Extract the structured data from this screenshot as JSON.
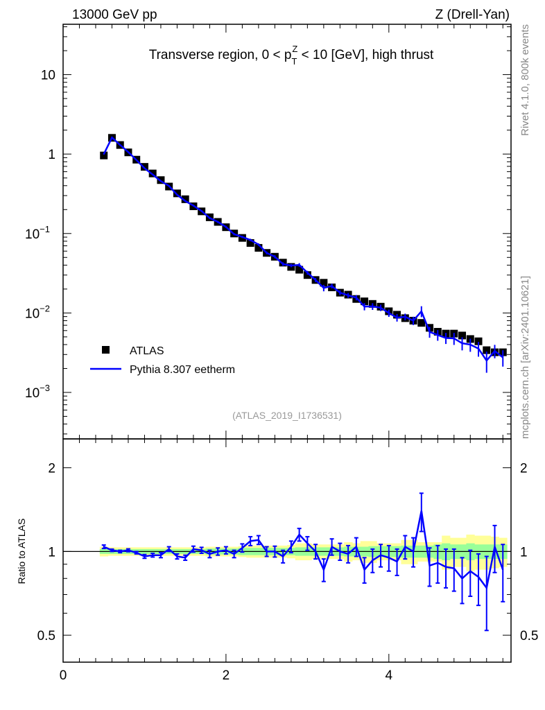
{
  "header": {
    "left": "13000 GeV pp",
    "right": "Z (Drell-Yan)"
  },
  "side": {
    "rivet": "Rivet 4.1.0,  800k events",
    "mcplots": "mcplots.cern.ch [arXiv:2401.10621]"
  },
  "chart_data": [
    {
      "type": "scatter",
      "title_parts": {
        "pre": "Transverse region, 0 < p",
        "sub": "T",
        "sup": "Z",
        "post": " < 10 [GeV], high thrust"
      },
      "analysis_label": "(ATLAS_2019_I1736531)",
      "xlim": [
        0,
        5.5
      ],
      "ylim": [
        0.00026,
        43
      ],
      "yscale": "log",
      "x_ticks": [
        "0",
        "2",
        "4"
      ],
      "y_ticks": [
        {
          "v": 10,
          "label": "10"
        },
        {
          "v": 1,
          "label": "1"
        },
        {
          "v": 0.1,
          "label": "10",
          "exp": "−1"
        },
        {
          "v": 0.01,
          "label": "10",
          "exp": "−2"
        },
        {
          "v": 0.001,
          "label": "10",
          "exp": "−3"
        }
      ],
      "legend": {
        "placement": "lower-left",
        "data_label": "ATLAS",
        "mc_label": "Pythia 8.307 eetherm"
      },
      "x": [
        0.5,
        0.6,
        0.7,
        0.8,
        0.9,
        1.0,
        1.1,
        1.2,
        1.3,
        1.4,
        1.5,
        1.6,
        1.7,
        1.8,
        1.9,
        2.0,
        2.1,
        2.2,
        2.3,
        2.4,
        2.5,
        2.6,
        2.7,
        2.8,
        2.9,
        3.0,
        3.1,
        3.2,
        3.3,
        3.4,
        3.5,
        3.6,
        3.7,
        3.8,
        3.9,
        4.0,
        4.1,
        4.2,
        4.3,
        4.4,
        4.5,
        4.6,
        4.7,
        4.8,
        4.9,
        5.0,
        5.1,
        5.2,
        5.3,
        5.4
      ],
      "atlas": [
        0.96,
        1.6,
        1.3,
        1.05,
        0.85,
        0.69,
        0.57,
        0.47,
        0.39,
        0.32,
        0.27,
        0.22,
        0.19,
        0.16,
        0.14,
        0.12,
        0.1,
        0.088,
        0.076,
        0.066,
        0.057,
        0.051,
        0.043,
        0.038,
        0.035,
        0.03,
        0.026,
        0.024,
        0.021,
        0.018,
        0.017,
        0.015,
        0.014,
        0.013,
        0.012,
        0.0105,
        0.0095,
        0.0086,
        0.008,
        0.0075,
        0.0065,
        0.0058,
        0.0055,
        0.0055,
        0.0052,
        0.0047,
        0.0044,
        0.0034,
        0.0032,
        0.0032
      ]
    },
    {
      "type": "line",
      "ylabel": "Ratio to ATLAS",
      "xlim": [
        0,
        5.5
      ],
      "ylim": [
        0.4,
        2.54
      ],
      "yscale": "log",
      "y_ticks": [
        {
          "v": 2,
          "label": "2"
        },
        {
          "v": 1,
          "label": "1"
        },
        {
          "v": 0.5,
          "label": "0.5"
        }
      ],
      "mc_ratio": [
        1.04,
        1.01,
        1.0,
        1.01,
        0.99,
        0.96,
        0.97,
        0.97,
        1.02,
        0.96,
        0.95,
        1.02,
        1.01,
        0.98,
        1.0,
        1.01,
        0.98,
        1.03,
        1.09,
        1.1,
        1.0,
        1.0,
        0.96,
        1.04,
        1.15,
        1.07,
        1.0,
        0.86,
        1.04,
        1.0,
        0.98,
        1.04,
        0.86,
        0.93,
        0.97,
        0.95,
        0.92,
        1.04,
        1.0,
        1.4,
        0.89,
        0.91,
        0.88,
        0.87,
        0.8,
        0.85,
        0.81,
        0.74,
        1.04,
        0.86
      ],
      "mc_ratio_err": [
        0.015,
        0.01,
        0.01,
        0.012,
        0.01,
        0.015,
        0.015,
        0.02,
        0.02,
        0.02,
        0.02,
        0.025,
        0.025,
        0.03,
        0.03,
        0.03,
        0.03,
        0.035,
        0.04,
        0.04,
        0.04,
        0.045,
        0.05,
        0.05,
        0.06,
        0.06,
        0.06,
        0.08,
        0.07,
        0.07,
        0.07,
        0.08,
        0.09,
        0.09,
        0.09,
        0.1,
        0.1,
        0.1,
        0.12,
        0.22,
        0.14,
        0.14,
        0.14,
        0.15,
        0.15,
        0.16,
        0.17,
        0.22,
        0.2,
        0.2
      ],
      "band_stat": [
        0.02,
        0.02,
        0.02,
        0.02,
        0.02,
        0.02,
        0.02,
        0.02,
        0.02,
        0.02,
        0.02,
        0.02,
        0.02,
        0.025,
        0.025,
        0.025,
        0.025,
        0.03,
        0.03,
        0.03,
        0.03,
        0.03,
        0.03,
        0.03,
        0.035,
        0.035,
        0.035,
        0.035,
        0.035,
        0.035,
        0.04,
        0.04,
        0.04,
        0.045,
        0.045,
        0.045,
        0.045,
        0.05,
        0.05,
        0.05,
        0.05,
        0.06,
        0.07,
        0.06,
        0.06,
        0.07,
        0.06,
        0.06,
        0.06,
        0.06
      ],
      "band_total": [
        0.04,
        0.035,
        0.035,
        0.035,
        0.035,
        0.035,
        0.035,
        0.035,
        0.035,
        0.035,
        0.035,
        0.035,
        0.035,
        0.04,
        0.04,
        0.04,
        0.04,
        0.045,
        0.05,
        0.05,
        0.05,
        0.05,
        0.05,
        0.055,
        0.07,
        0.07,
        0.06,
        0.06,
        0.06,
        0.06,
        0.08,
        0.07,
        0.09,
        0.09,
        0.07,
        0.07,
        0.07,
        0.1,
        0.1,
        0.08,
        0.08,
        0.08,
        0.14,
        0.12,
        0.12,
        0.15,
        0.14,
        0.14,
        0.13,
        0.12
      ]
    }
  ]
}
